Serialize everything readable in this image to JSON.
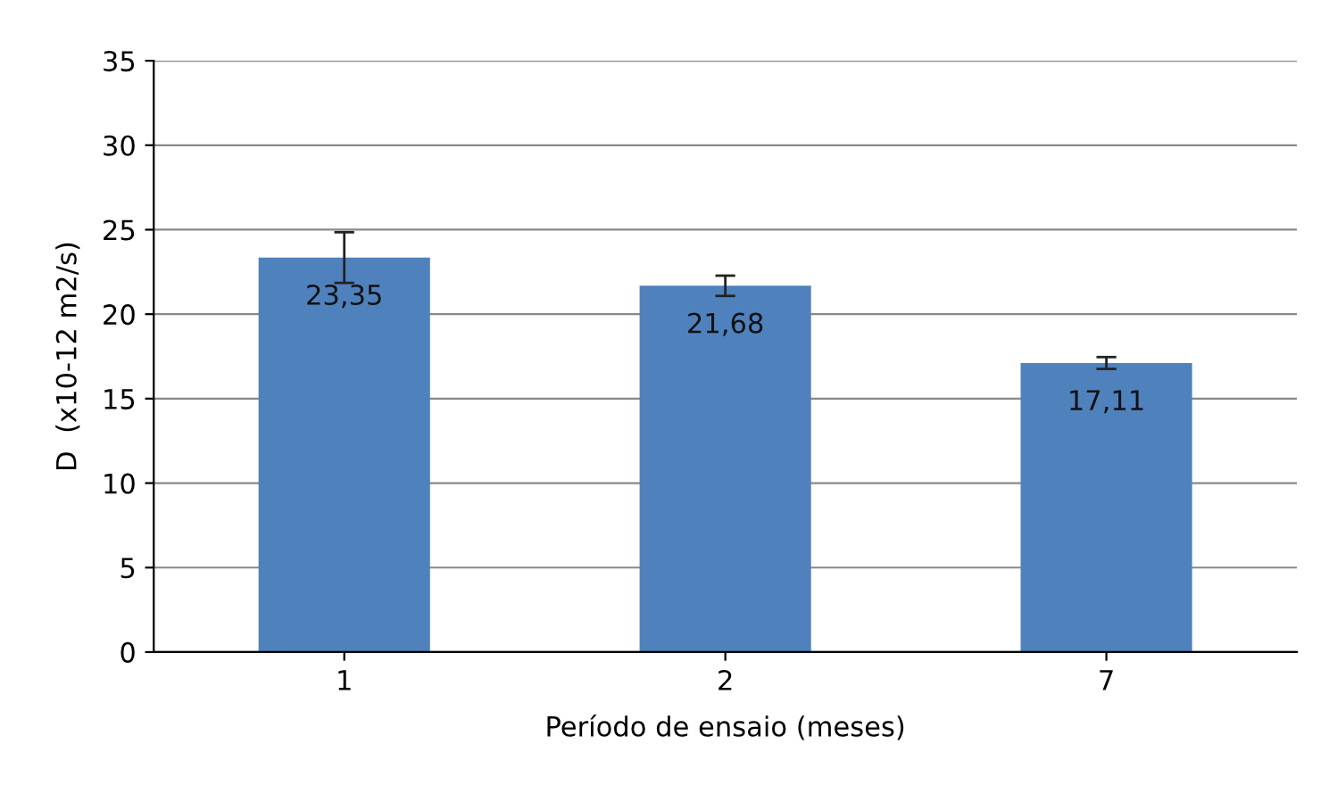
{
  "chart_data": {
    "type": "bar",
    "xlabel": "Período de ensaio (meses)",
    "ylabel": "D  (x10-12 m2/s)",
    "categories": [
      "1",
      "2",
      "7"
    ],
    "values": [
      23.35,
      21.68,
      17.11
    ],
    "value_labels": [
      "23,35",
      "21,68",
      "17,11"
    ],
    "errors": [
      1.5,
      0.6,
      0.35
    ],
    "color": "#4f81bd",
    "ylim": [
      0,
      35
    ],
    "yticks": [
      0,
      5,
      10,
      15,
      20,
      25,
      30,
      35
    ],
    "grid": "y"
  }
}
